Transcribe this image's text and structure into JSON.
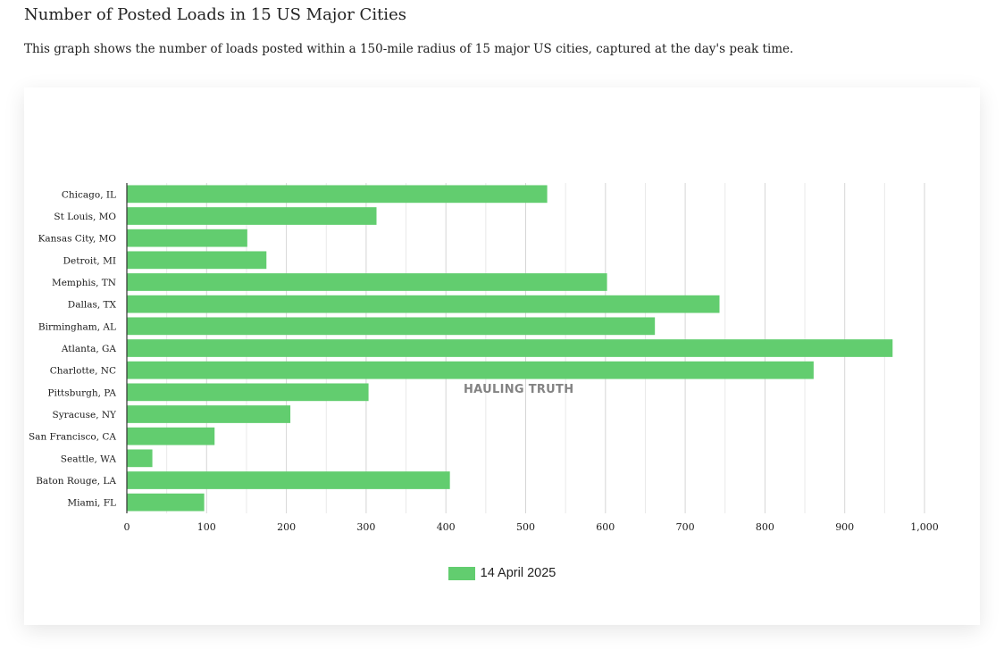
{
  "page": {
    "title": "Number of Posted Loads in 15 US Major Cities",
    "description": "This graph shows the number of loads posted within a 150-mile radius of 15 major US cities, captured at the day's peak time.",
    "watermark": "HAULING TRUTH"
  },
  "colors": {
    "bar": "#62cd6f",
    "grid": "#d6d6d6",
    "axis": "#333333",
    "text": "#1a1a1a"
  },
  "chart_data": {
    "type": "bar",
    "orientation": "horizontal",
    "title": "",
    "xlabel": "",
    "ylabel": "",
    "categories": [
      "Chicago, IL",
      "St Louis, MO",
      "Kansas City, MO",
      "Detroit, MI",
      "Memphis, TN",
      "Dallas, TX",
      "Birmingham, AL",
      "Atlanta, GA",
      "Charlotte, NC",
      "Pittsburgh, PA",
      "Syracuse, NY",
      "San Francisco, CA",
      "Seattle, WA",
      "Baton Rouge, LA",
      "Miami, FL"
    ],
    "series": [
      {
        "name": "14 April 2025",
        "values": [
          527,
          313,
          151,
          175,
          602,
          743,
          662,
          960,
          861,
          303,
          205,
          110,
          32,
          405,
          97
        ]
      }
    ],
    "xlim": [
      0,
      1000
    ],
    "xticks": [
      0,
      100,
      200,
      300,
      400,
      500,
      600,
      700,
      800,
      900,
      1000
    ],
    "xtick_labels": [
      "0",
      "100",
      "200",
      "300",
      "400",
      "500",
      "600",
      "700",
      "800",
      "900",
      "1,000"
    ],
    "grid": true,
    "minor_grid": true,
    "legend_position": "bottom"
  }
}
